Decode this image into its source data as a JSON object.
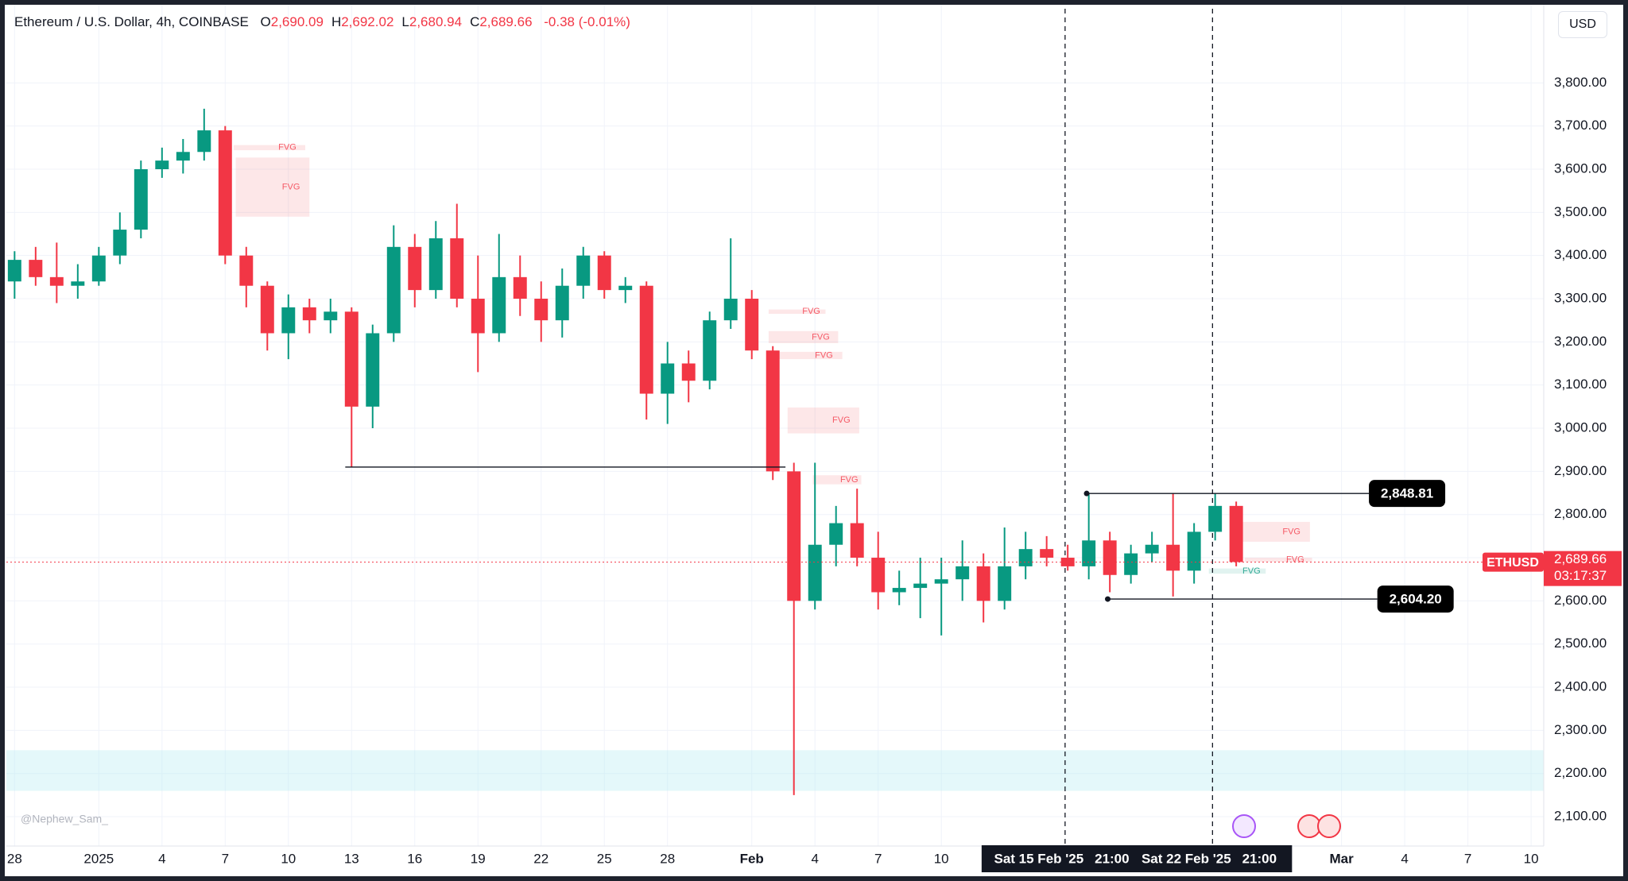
{
  "header": {
    "symbol": "Ethereum / U.S. Dollar, 4h, COINBASE",
    "ohlc": [
      {
        "key": "O",
        "value": "2,690.09"
      },
      {
        "key": "H",
        "value": "2,692.02"
      },
      {
        "key": "L",
        "value": "2,680.94"
      },
      {
        "key": "C",
        "value": "2,689.66"
      }
    ],
    "change": "-0.38 (-0.01%)"
  },
  "currency": "USD",
  "watermark": "@Nephew_Sam_",
  "chart_data": {
    "type": "candlestick",
    "up_color": "#089981",
    "down_color": "#f23645",
    "x": [
      0,
      1,
      2,
      3,
      4,
      5,
      6,
      7,
      8,
      9,
      10,
      11,
      12,
      13,
      14,
      15,
      16,
      17,
      18,
      19,
      20,
      21,
      22,
      23,
      24,
      25,
      26,
      27,
      28,
      29,
      30,
      31,
      32,
      33,
      34,
      35,
      36,
      37,
      38,
      39,
      40,
      41,
      42,
      43,
      44,
      45,
      46,
      47,
      48,
      49,
      50,
      51,
      52,
      53,
      54,
      55,
      56,
      57,
      58
    ],
    "open": [
      3340,
      3390,
      3350,
      3330,
      3340,
      3400,
      3460,
      3600,
      3620,
      3640,
      3690,
      3400,
      3330,
      3220,
      3280,
      3250,
      3270,
      3050,
      3220,
      3420,
      3320,
      3440,
      3300,
      3220,
      3350,
      3300,
      3250,
      3330,
      3400,
      3320,
      3330,
      3080,
      3150,
      3110,
      3250,
      3300,
      3180,
      2900,
      2600,
      2730,
      2780,
      2700,
      2620,
      2630,
      2640,
      2650,
      2680,
      2600,
      2680,
      2720,
      2700,
      2680,
      2740,
      2660,
      2710,
      2730,
      2670,
      2760,
      2820
    ],
    "high": [
      3410,
      3420,
      3430,
      3380,
      3420,
      3500,
      3620,
      3650,
      3670,
      3740,
      3700,
      3420,
      3340,
      3310,
      3300,
      3300,
      3280,
      3240,
      3470,
      3450,
      3480,
      3520,
      3400,
      3450,
      3400,
      3340,
      3370,
      3420,
      3410,
      3350,
      3340,
      3200,
      3180,
      3270,
      3440,
      3320,
      3190,
      2920,
      2920,
      2820,
      2860,
      2760,
      2670,
      2700,
      2700,
      2740,
      2710,
      2770,
      2760,
      2750,
      2730,
      2850,
      2760,
      2730,
      2760,
      2850,
      2780,
      2850,
      2830
    ],
    "low": [
      3300,
      3330,
      3290,
      3300,
      3330,
      3380,
      3440,
      3580,
      3590,
      3620,
      3380,
      3280,
      3180,
      3160,
      3220,
      3220,
      2910,
      3000,
      3200,
      3280,
      3300,
      3280,
      3130,
      3200,
      3260,
      3200,
      3210,
      3300,
      3300,
      3290,
      3020,
      3010,
      3060,
      3090,
      3230,
      3160,
      2880,
      2150,
      2580,
      2680,
      2680,
      2580,
      2590,
      2560,
      2520,
      2600,
      2550,
      2580,
      2650,
      2680,
      2670,
      2650,
      2620,
      2640,
      2690,
      2610,
      2640,
      2740,
      2680
    ],
    "close": [
      3390,
      3350,
      3330,
      3340,
      3400,
      3460,
      3600,
      3620,
      3640,
      3690,
      3400,
      3330,
      3220,
      3280,
      3250,
      3270,
      3050,
      3220,
      3420,
      3320,
      3440,
      3300,
      3220,
      3350,
      3300,
      3250,
      3330,
      3400,
      3320,
      3330,
      3080,
      3150,
      3110,
      3250,
      3300,
      3180,
      2900,
      2600,
      2730,
      2780,
      2700,
      2620,
      2630,
      2640,
      2650,
      2680,
      2600,
      2680,
      2720,
      2700,
      2680,
      2740,
      2660,
      2710,
      2730,
      2670,
      2760,
      2820,
      2690
    ],
    "xlim": [
      -0.39,
      72.6
    ],
    "xticks": [
      {
        "value": 0,
        "label": "28"
      },
      {
        "value": 4,
        "label": "2025"
      },
      {
        "value": 7,
        "label": "4"
      },
      {
        "value": 10,
        "label": "7"
      },
      {
        "value": 13,
        "label": "10"
      },
      {
        "value": 16,
        "label": "13"
      },
      {
        "value": 19,
        "label": "16"
      },
      {
        "value": 22,
        "label": "19"
      },
      {
        "value": 25,
        "label": "22"
      },
      {
        "value": 28,
        "label": "25"
      },
      {
        "value": 31,
        "label": "28"
      },
      {
        "value": 35,
        "label": "Feb"
      },
      {
        "value": 38,
        "label": "4"
      },
      {
        "value": 41,
        "label": "7"
      },
      {
        "value": 44,
        "label": "10"
      },
      {
        "value": 63,
        "label": "Mar"
      },
      {
        "value": 66,
        "label": "4"
      },
      {
        "value": 69,
        "label": "7"
      },
      {
        "value": 72,
        "label": "10"
      }
    ],
    "ylim": [
      2032,
      3992
    ],
    "yticks": [
      {
        "value": 2100,
        "label": "2,100.00"
      },
      {
        "value": 2200,
        "label": "2,200.00"
      },
      {
        "value": 2300,
        "label": "2,300.00"
      },
      {
        "value": 2400,
        "label": "2,400.00"
      },
      {
        "value": 2500,
        "label": "2,500.00"
      },
      {
        "value": 2600,
        "label": "2,600.00"
      },
      {
        "value": 2700,
        "label": "2,700.00"
      },
      {
        "value": 2800,
        "label": "2,800.00"
      },
      {
        "value": 2900,
        "label": "2,900.00"
      },
      {
        "value": 3000,
        "label": "3,000.00"
      },
      {
        "value": 3100,
        "label": "3,100.00"
      },
      {
        "value": 3200,
        "label": "3,200.00"
      },
      {
        "value": 3300,
        "label": "3,300.00"
      },
      {
        "value": 3400,
        "label": "3,400.00"
      },
      {
        "value": 3500,
        "label": "3,500.00"
      },
      {
        "value": 3600,
        "label": "3,600.00"
      },
      {
        "value": 3700,
        "label": "3,700.00"
      },
      {
        "value": 3800,
        "label": "3,800.00"
      }
    ],
    "grid": true,
    "zones": [
      {
        "y": [
          2160,
          2254
        ],
        "color": "#b2ebf2"
      },
      {
        "label": "FVG",
        "x": [
          10.4,
          13.8
        ],
        "y": [
          3644,
          3656
        ],
        "color": "#f23645"
      },
      {
        "label": "FVG",
        "x": [
          10.5,
          14
        ],
        "y": [
          3490,
          3627
        ],
        "color": "#f23645"
      },
      {
        "label": "FVG",
        "x": [
          35.8,
          38.5
        ],
        "y": [
          3265,
          3275
        ],
        "color": "#f23645"
      },
      {
        "label": "FVG",
        "x": [
          35.8,
          39.1
        ],
        "y": [
          3197,
          3225
        ],
        "color": "#f23645"
      },
      {
        "label": "FVG",
        "x": [
          35.8,
          39.3
        ],
        "y": [
          3160,
          3177
        ],
        "color": "#f23645"
      },
      {
        "label": "FVG",
        "x": [
          36.7,
          40.1
        ],
        "y": [
          2988,
          3048
        ],
        "color": "#f23645"
      },
      {
        "label": "FVG",
        "x": [
          37.9,
          40.2
        ],
        "y": [
          2870,
          2891
        ],
        "color": "#f23645"
      },
      {
        "label": "FVG",
        "x": [
          58,
          61.5
        ],
        "y": [
          2737,
          2783
        ],
        "color": "#f23645"
      },
      {
        "label": "FVG",
        "x": [
          58.4,
          61.6
        ],
        "y": [
          2690,
          2700
        ],
        "color": "#f23645"
      },
      {
        "label": "FVG",
        "x": [
          56.7,
          59.4
        ],
        "y": [
          2663,
          2675
        ],
        "color": "#089981"
      }
    ],
    "levels": [
      {
        "value": 2910,
        "x": [
          15.7,
          36.6
        ]
      },
      {
        "value": 2848.81,
        "label": "2,848.81",
        "x": [
          50.9,
          64.3
        ]
      },
      {
        "value": 2604.2,
        "label": "2,604.20",
        "x": [
          51.9,
          64.7
        ]
      }
    ],
    "crosshairs": [
      {
        "x": 49.875,
        "label": "Sat 15 Feb '25",
        "time": "21:00"
      },
      {
        "x": 56.875,
        "label": "Sat 22 Feb '25",
        "time": "21:00"
      }
    ],
    "last": {
      "symbol": "ETHUSD",
      "value": 2689.66,
      "label": "2,689.66",
      "countdown": "03:17:37"
    }
  }
}
